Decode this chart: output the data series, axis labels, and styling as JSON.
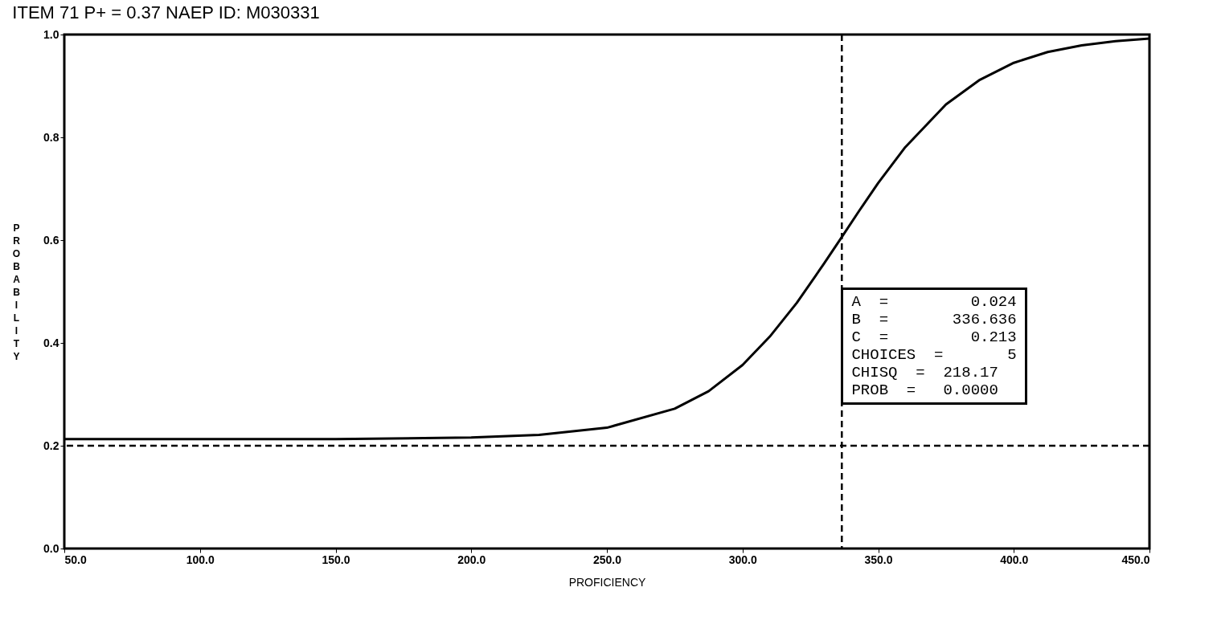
{
  "chart_data": {
    "type": "line",
    "title": "ITEM   71   P+  =  0.37      NAEP  ID:   M030331",
    "xlabel": "PROFICIENCY",
    "ylabel": "PROBABILITY",
    "xlim": [
      50,
      450
    ],
    "ylim": [
      0,
      1
    ],
    "xticks": [
      {
        "value": 50,
        "label": "50.0"
      },
      {
        "value": 100,
        "label": "100.0"
      },
      {
        "value": 150,
        "label": "150.0"
      },
      {
        "value": 200,
        "label": "200.0"
      },
      {
        "value": 250,
        "label": "250.0"
      },
      {
        "value": 300,
        "label": "300.0"
      },
      {
        "value": 350,
        "label": "350.0"
      },
      {
        "value": 400,
        "label": "400.0"
      },
      {
        "value": 450,
        "label": "450.0"
      }
    ],
    "yticks": [
      {
        "value": 0,
        "label": "0.0"
      },
      {
        "value": 0.2,
        "label": "0.2"
      },
      {
        "value": 0.4,
        "label": "0.4"
      },
      {
        "value": 0.6,
        "label": "0.6"
      },
      {
        "value": 0.8,
        "label": "0.8"
      },
      {
        "value": 1,
        "label": "1.0"
      }
    ],
    "series": [
      {
        "color": "#000000",
        "x": [
          50,
          100,
          150,
          200,
          225,
          250,
          275,
          287.5,
          300,
          310,
          320,
          330,
          336.6,
          343,
          350,
          360,
          375,
          387.5,
          400,
          412.5,
          425,
          437.5,
          450
        ],
        "values": [
          0.213,
          0.213,
          0.213,
          0.216,
          0.221,
          0.235,
          0.272,
          0.306,
          0.357,
          0.412,
          0.478,
          0.554,
          0.606,
          0.657,
          0.711,
          0.781,
          0.864,
          0.912,
          0.945,
          0.966,
          0.979,
          0.987,
          0.992
        ]
      }
    ],
    "ref_lines": [
      {
        "axis": "x",
        "value": 336.6,
        "line_style": "dashed",
        "color": "#000000"
      },
      {
        "axis": "y",
        "value": 0.2,
        "line_style": "dashed",
        "color": "#000000"
      }
    ],
    "annotations": [
      "A  =         0.024",
      "B  =       336.636",
      "C  =         0.213",
      "CHOICES  =       5",
      "CHISQ  =  218.17",
      "PROB  =   0.0000"
    ],
    "grid": false,
    "legend": false,
    "marker": "none",
    "line_style": "solid"
  }
}
